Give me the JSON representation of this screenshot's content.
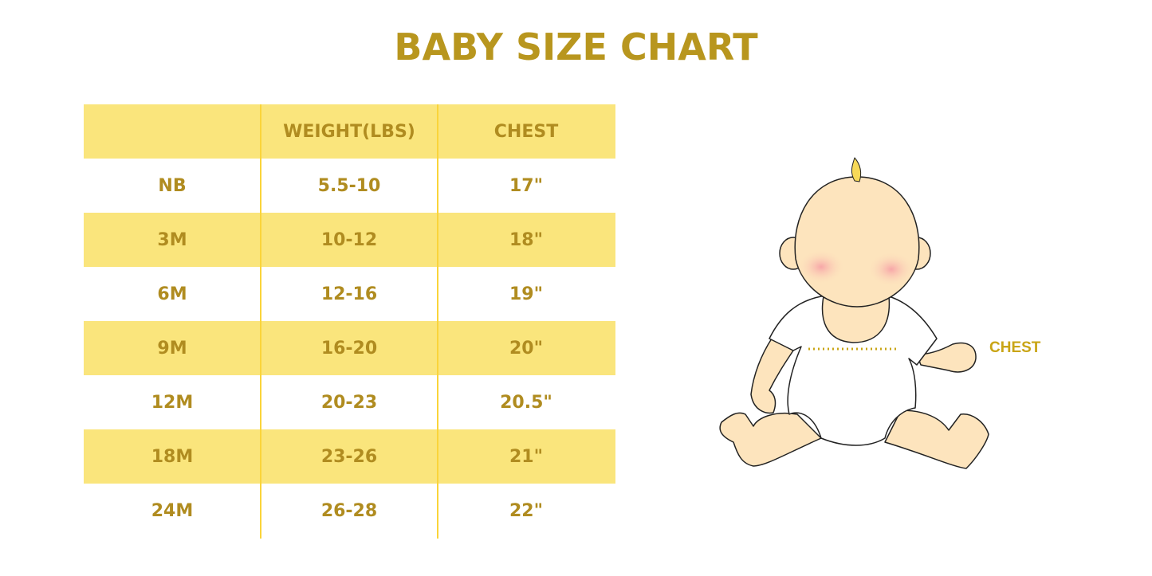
{
  "title": "BABY SIZE CHART",
  "table": {
    "headers": [
      "",
      "WEIGHT(LBS)",
      "CHEST"
    ],
    "rows": [
      [
        "NB",
        "5.5-10",
        "17\""
      ],
      [
        "3M",
        "10-12",
        "18\""
      ],
      [
        "6M",
        "12-16",
        "19\""
      ],
      [
        "9M",
        "16-20",
        "20\""
      ],
      [
        "12M",
        "20-23",
        "20.5\""
      ],
      [
        "18M",
        "23-26",
        "21\""
      ],
      [
        "24M",
        "26-28",
        "22\""
      ]
    ]
  },
  "illustration": {
    "chest_label": "CHEST"
  },
  "colors": {
    "title": "#b8961e",
    "stripe": "#fae57c",
    "text": "#b08c20",
    "divider": "#fad43a",
    "skin": "#fde4bd"
  }
}
